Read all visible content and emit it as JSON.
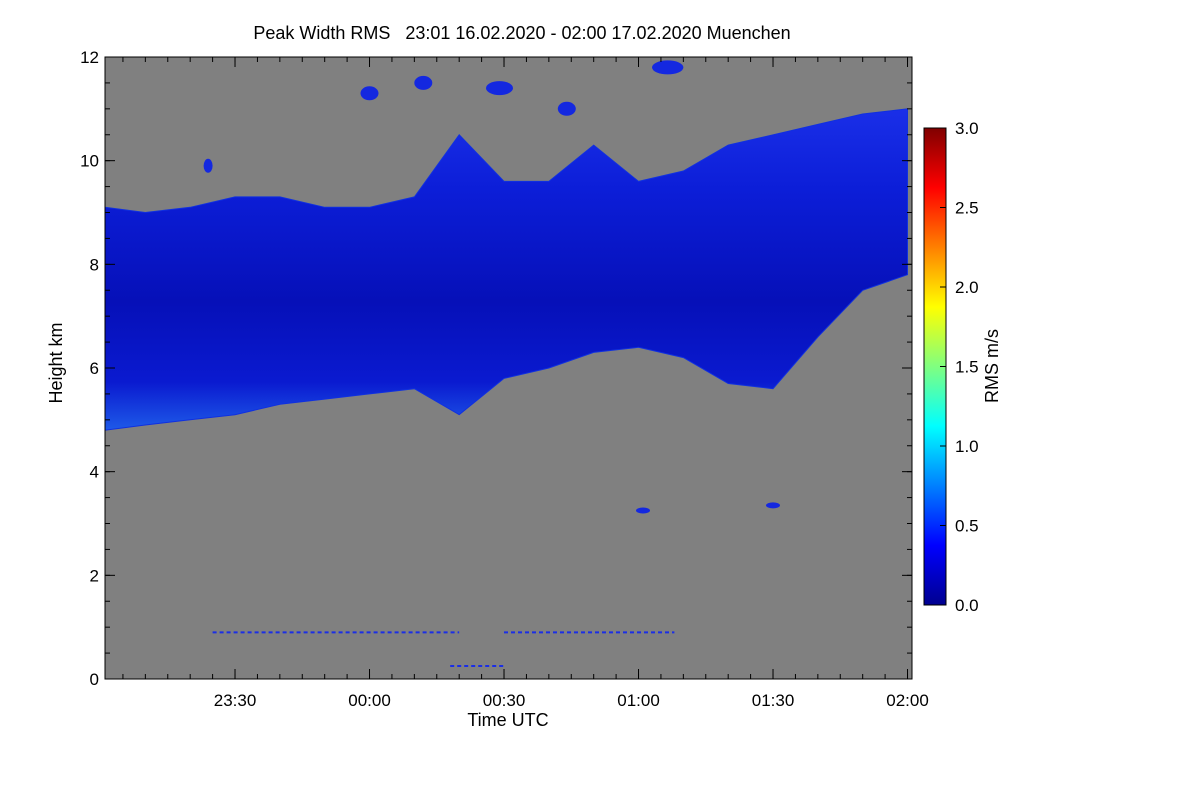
{
  "chart_data": {
    "type": "heatmap",
    "title": "Peak Width RMS   23:01 16.02.2020 - 02:00 17.02.2020 Muenchen",
    "xlabel": "Time UTC",
    "ylabel": "Height km",
    "xlim": [
      "23:01",
      "02:01"
    ],
    "ylim": [
      0,
      12
    ],
    "x_ticks": [
      "23:30",
      "00:00",
      "00:30",
      "01:00",
      "01:30",
      "02:00"
    ],
    "y_ticks": [
      "0",
      "2",
      "4",
      "6",
      "8",
      "10",
      "12"
    ],
    "colorbar": {
      "label": "RMS m/s",
      "range": [
        0.0,
        3.0
      ],
      "ticks": [
        "0.0",
        "0.5",
        "1.0",
        "1.5",
        "2.0",
        "2.5",
        "3.0"
      ],
      "colormap": [
        "#00008f",
        "#0000ff",
        "#0080ff",
        "#00ffff",
        "#80ff80",
        "#ffff00",
        "#ff8000",
        "#ff0000",
        "#800000"
      ]
    },
    "background_color": "#808080",
    "cloud_layer": {
      "description_values": "approximate base and top height (km) of the echo layer vs time",
      "time": [
        "23:01",
        "23:10",
        "23:20",
        "23:30",
        "23:40",
        "23:50",
        "00:00",
        "00:10",
        "00:20",
        "00:30",
        "00:40",
        "00:50",
        "01:00",
        "01:10",
        "01:20",
        "01:30",
        "01:40",
        "01:50",
        "02:00"
      ],
      "base_km": [
        4.8,
        4.9,
        5.0,
        5.1,
        5.3,
        5.4,
        5.5,
        5.6,
        5.1,
        5.8,
        6.0,
        6.3,
        6.4,
        6.2,
        5.7,
        5.6,
        6.6,
        7.5,
        7.8
      ],
      "top_km": [
        9.1,
        9.0,
        9.1,
        9.3,
        9.3,
        9.1,
        9.1,
        9.3,
        10.5,
        9.6,
        9.6,
        10.3,
        9.6,
        9.8,
        10.3,
        10.5,
        10.7,
        10.9,
        11.0
      ],
      "typical_rms": 0.3,
      "peak_rms": 0.9
    },
    "upper_patches": [
      {
        "time_start": "23:58",
        "time_end": "00:02",
        "height_km": 11.3
      },
      {
        "time_start": "00:10",
        "time_end": "00:14",
        "height_km": 11.5
      },
      {
        "time_start": "00:26",
        "time_end": "00:32",
        "height_km": 11.4
      },
      {
        "time_start": "00:42",
        "time_end": "00:46",
        "height_km": 11.0
      },
      {
        "time_start": "01:03",
        "time_end": "01:10",
        "height_km": 11.8
      },
      {
        "time_start": "23:23",
        "time_end": "23:25",
        "height_km": 9.9
      }
    ],
    "small_echoes": [
      {
        "time": "01:01",
        "height_km": 3.25
      },
      {
        "time": "01:30",
        "height_km": 3.35
      }
    ],
    "low_level_lines": [
      {
        "time_start": "23:25",
        "time_end": "00:20",
        "height_km": 0.9
      },
      {
        "time_start": "00:30",
        "time_end": "01:08",
        "height_km": 0.9
      },
      {
        "time_start": "00:18",
        "time_end": "00:30",
        "height_km": 0.25
      }
    ]
  }
}
